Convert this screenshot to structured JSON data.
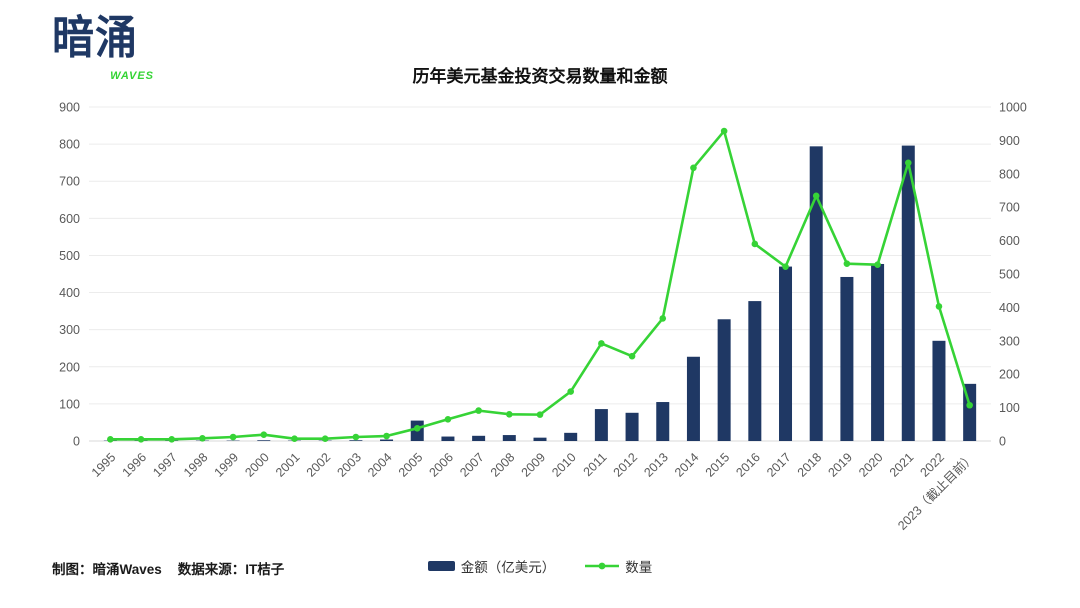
{
  "logo": {
    "text": "暗涌",
    "subtext": "WAVES"
  },
  "title": "历年美元基金投资交易数量和金额",
  "legend": [
    {
      "label": "金额（亿美元）",
      "marker": "bar-swatch",
      "color": "#1f3864"
    },
    {
      "label": "数量",
      "marker": "line-dot-swatch",
      "color": "#36d336"
    }
  ],
  "footer": {
    "credit": "制图：暗涌Waves",
    "source": "数据来源：IT桔子"
  },
  "colors": {
    "bar": "#1f3864",
    "line": "#36d336",
    "grid": "#ececec",
    "axis_line": "#d9d9d9",
    "tick_text": "#595959",
    "navy_brand": "#1f3864",
    "green_brand": "#35d435"
  },
  "chart_data": {
    "type": "bar",
    "subtype": "bar+line dual axis",
    "title": "历年美元基金投资交易数量和金额",
    "categories": [
      "1995",
      "1996",
      "1997",
      "1998",
      "1999",
      "2000",
      "2001",
      "2002",
      "2003",
      "2004",
      "2005",
      "2006",
      "2007",
      "2008",
      "2009",
      "2010",
      "2011",
      "2012",
      "2013",
      "2014",
      "2015",
      "2016",
      "2017",
      "2018",
      "2019",
      "2020",
      "2021",
      "2022",
      "2023（截止目前）"
    ],
    "series": [
      {
        "name": "金额（亿美元）",
        "type": "bar",
        "axis": "left",
        "color": "#1f3864",
        "values": [
          1,
          1,
          1,
          1,
          1,
          2,
          1,
          1,
          2,
          4,
          55,
          12,
          14,
          16,
          9,
          22,
          86,
          76,
          105,
          227,
          328,
          377,
          470,
          794,
          442,
          477,
          796,
          270,
          154
        ]
      },
      {
        "name": "数量",
        "type": "line",
        "axis": "right",
        "color": "#36d336",
        "values": [
          5,
          5,
          5,
          8,
          12,
          19,
          7,
          7,
          12,
          15,
          38,
          65,
          91,
          80,
          79,
          148,
          292,
          254,
          367,
          818,
          928,
          590,
          522,
          734,
          531,
          528,
          833,
          403,
          107
        ]
      }
    ],
    "left_axis": {
      "min": 0,
      "max": 900,
      "step": 100,
      "ticks": [
        0,
        100,
        200,
        300,
        400,
        500,
        600,
        700,
        800,
        900
      ]
    },
    "right_axis": {
      "min": 0,
      "max": 1000,
      "step": 100,
      "ticks": [
        0,
        100,
        200,
        300,
        400,
        500,
        600,
        700,
        800,
        900,
        1000
      ]
    },
    "grid": true,
    "legend_position": "bottom-center",
    "x_label_rotation": -45
  }
}
